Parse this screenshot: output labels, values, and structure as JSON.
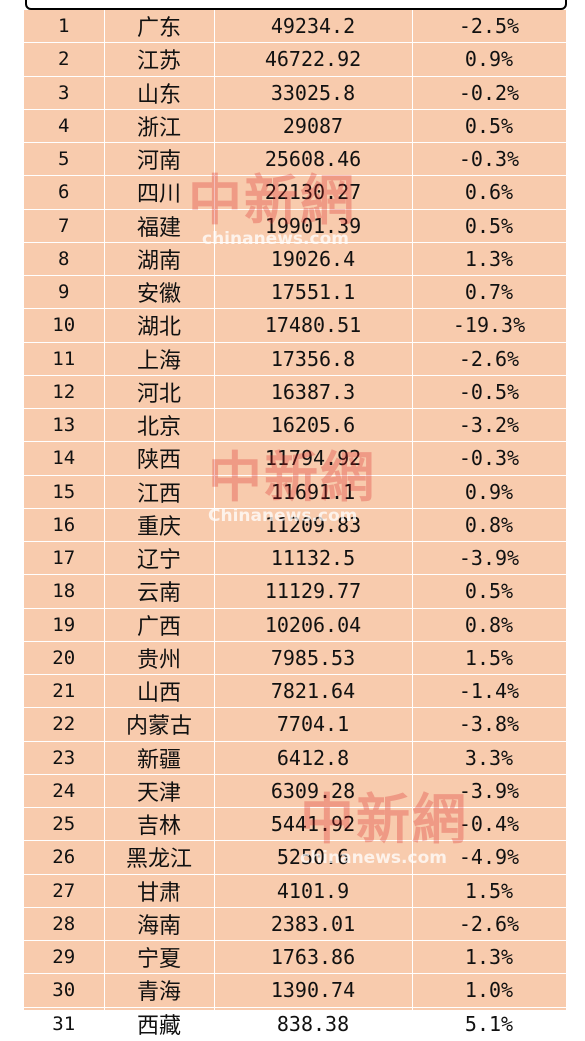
{
  "rows": [
    {
      "rank": "1",
      "province": "广东",
      "value": "49234.2",
      "change": "-2.5%"
    },
    {
      "rank": "2",
      "province": "江苏",
      "value": "46722.92",
      "change": "0.9%"
    },
    {
      "rank": "3",
      "province": "山东",
      "value": "33025.8",
      "change": "-0.2%"
    },
    {
      "rank": "4",
      "province": "浙江",
      "value": "29087",
      "change": "0.5%"
    },
    {
      "rank": "5",
      "province": "河南",
      "value": "25608.46",
      "change": "-0.3%"
    },
    {
      "rank": "6",
      "province": "四川",
      "value": "22130.27",
      "change": "0.6%"
    },
    {
      "rank": "7",
      "province": "福建",
      "value": "19901.39",
      "change": "0.5%"
    },
    {
      "rank": "8",
      "province": "湖南",
      "value": "19026.4",
      "change": "1.3%"
    },
    {
      "rank": "9",
      "province": "安徽",
      "value": "17551.1",
      "change": "0.7%"
    },
    {
      "rank": "10",
      "province": "湖北",
      "value": "17480.51",
      "change": "-19.3%"
    },
    {
      "rank": "11",
      "province": "上海",
      "value": "17356.8",
      "change": "-2.6%"
    },
    {
      "rank": "12",
      "province": "河北",
      "value": "16387.3",
      "change": "-0.5%"
    },
    {
      "rank": "13",
      "province": "北京",
      "value": "16205.6",
      "change": "-3.2%"
    },
    {
      "rank": "14",
      "province": "陕西",
      "value": "11794.92",
      "change": "-0.3%"
    },
    {
      "rank": "15",
      "province": "江西",
      "value": "11691.1",
      "change": "0.9%"
    },
    {
      "rank": "16",
      "province": "重庆",
      "value": "11209.83",
      "change": "0.8%"
    },
    {
      "rank": "17",
      "province": "辽宁",
      "value": "11132.5",
      "change": "-3.9%"
    },
    {
      "rank": "18",
      "province": "云南",
      "value": "11129.77",
      "change": "0.5%"
    },
    {
      "rank": "19",
      "province": "广西",
      "value": "10206.04",
      "change": "0.8%"
    },
    {
      "rank": "20",
      "province": "贵州",
      "value": "7985.53",
      "change": "1.5%"
    },
    {
      "rank": "21",
      "province": "山西",
      "value": "7821.64",
      "change": "-1.4%"
    },
    {
      "rank": "22",
      "province": "内蒙古",
      "value": "7704.1",
      "change": "-3.8%"
    },
    {
      "rank": "23",
      "province": "新疆",
      "value": "6412.8",
      "change": "3.3%"
    },
    {
      "rank": "24",
      "province": "天津",
      "value": "6309.28",
      "change": "-3.9%"
    },
    {
      "rank": "25",
      "province": "吉林",
      "value": "5441.92",
      "change": "-0.4%"
    },
    {
      "rank": "26",
      "province": "黑龙江",
      "value": "5250.6",
      "change": "-4.9%"
    },
    {
      "rank": "27",
      "province": "甘肃",
      "value": "4101.9",
      "change": "1.5%"
    },
    {
      "rank": "28",
      "province": "海南",
      "value": "2383.01",
      "change": "-2.6%"
    },
    {
      "rank": "29",
      "province": "宁夏",
      "value": "1763.86",
      "change": "1.3%"
    },
    {
      "rank": "30",
      "province": "青海",
      "value": "1390.74",
      "change": "1.0%"
    },
    {
      "rank": "31",
      "province": "西藏",
      "value": "838.38",
      "change": "5.1%"
    }
  ],
  "watermark": {
    "mark": "中新網",
    "url_variants": [
      "chinanews.com",
      "Chinanews.com",
      "chinanews.com"
    ]
  },
  "colors": {
    "table_fill": "#f8cbad",
    "grid_line": "#ffffff",
    "watermark": "#d61e1e"
  }
}
